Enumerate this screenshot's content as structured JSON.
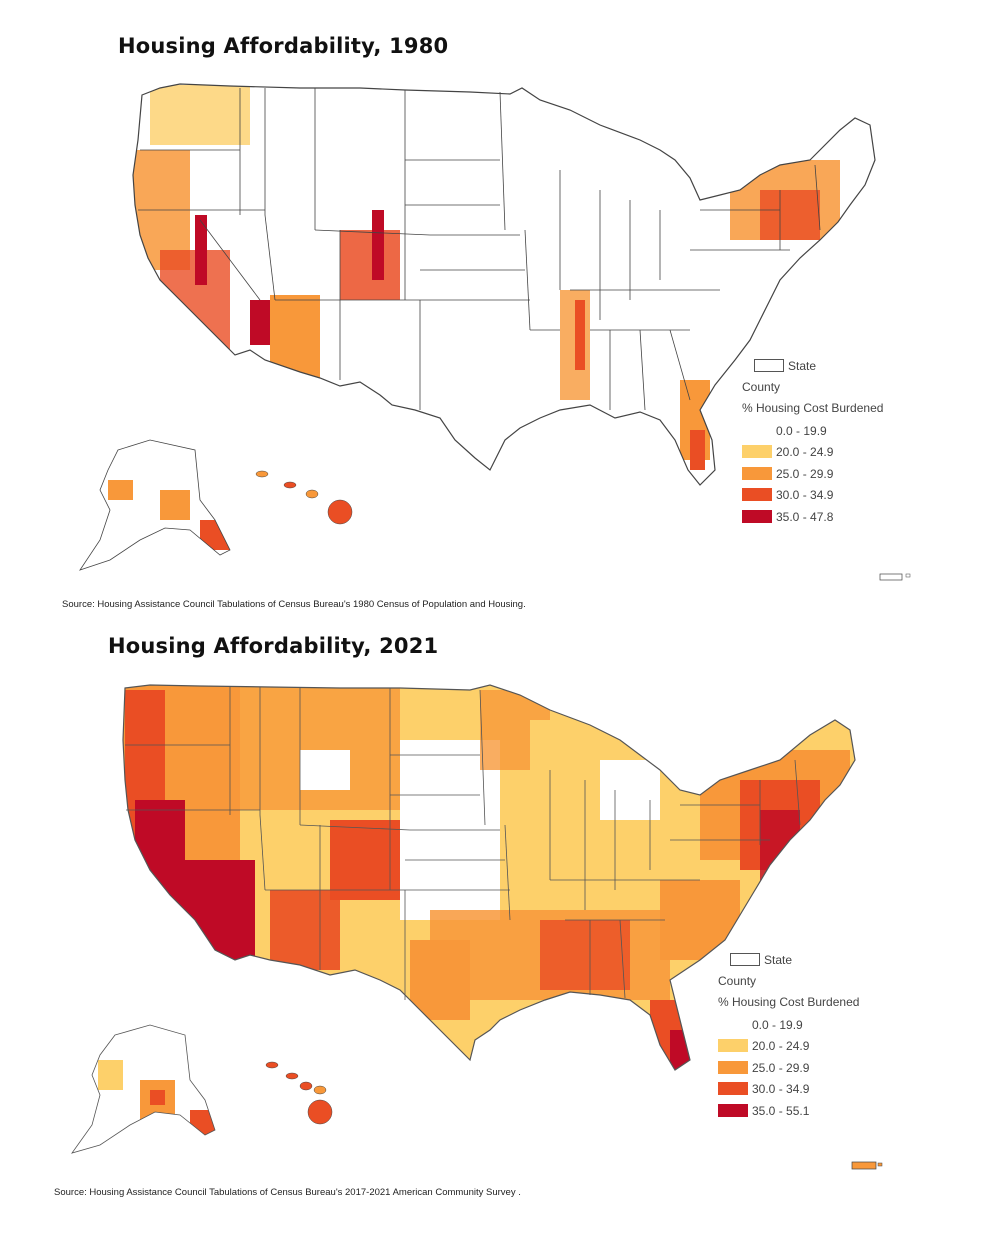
{
  "maps": [
    {
      "year": "1980",
      "title": "Housing Affordability, 1980",
      "source": "Source: Housing Assistance Council Tabulations of Census Bureau's 1980 Census of Population and Housing.",
      "legend": {
        "state_label": "State",
        "county_label": "County",
        "measure_label": "% Housing Cost Burdened",
        "classes": [
          {
            "label": "0.0 - 19.9",
            "color": "#ffffff"
          },
          {
            "label": "20.0 - 24.9",
            "color": "#fdd06a"
          },
          {
            "label": "25.0 - 29.9",
            "color": "#f8983a"
          },
          {
            "label": "30.0 - 34.9",
            "color": "#ea4e24"
          },
          {
            "label": "35.0 - 47.8",
            "color": "#bf0a26"
          }
        ]
      }
    },
    {
      "year": "2021",
      "title": "Housing Affordability, 2021",
      "source": "Source: Housing Assistance Council Tabulations of Census Bureau's 2017-2021 American Community Survey .",
      "legend": {
        "state_label": "State",
        "county_label": "County",
        "measure_label": "% Housing Cost Burdened",
        "classes": [
          {
            "label": "0.0 - 19.9",
            "color": "#ffffff"
          },
          {
            "label": "20.0 - 24.9",
            "color": "#fdd06a"
          },
          {
            "label": "25.0 - 29.9",
            "color": "#f8983a"
          },
          {
            "label": "30.0 - 34.9",
            "color": "#ea4e24"
          },
          {
            "label": "35.0 - 55.1",
            "color": "#bf0a26"
          }
        ]
      }
    }
  ]
}
